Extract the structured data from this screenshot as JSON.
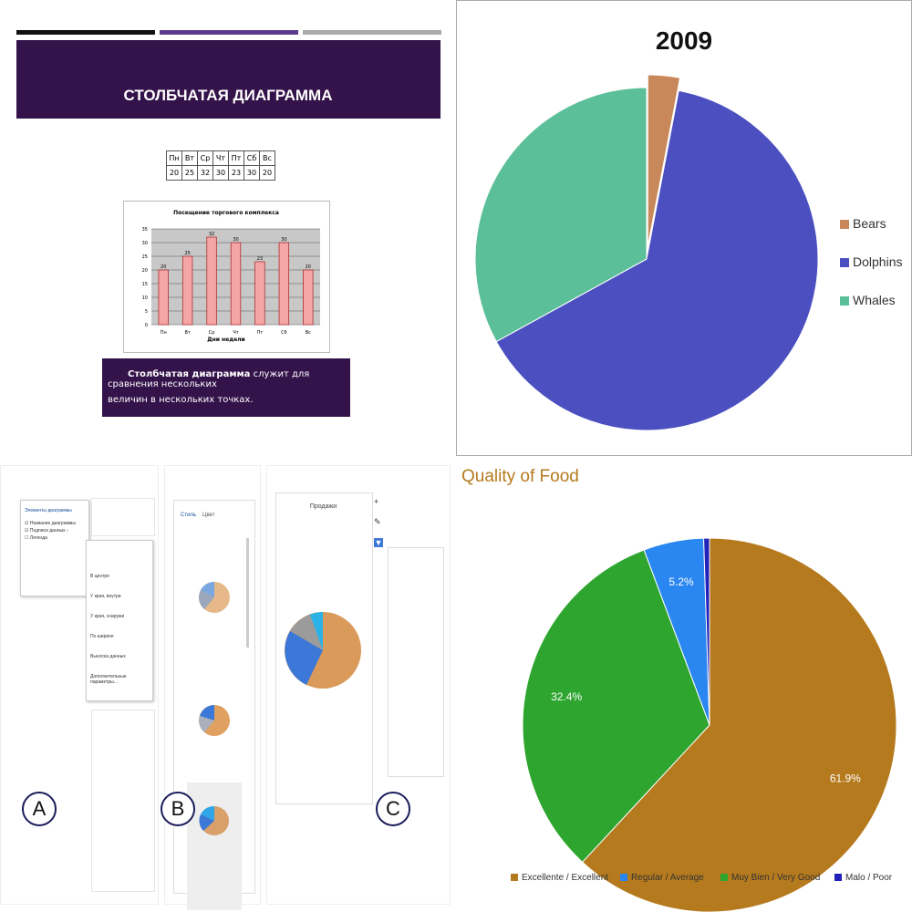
{
  "slide": {
    "title": "СТОЛБЧАТАЯ ДИАГРАММА",
    "table_days": [
      "Пн",
      "Вт",
      "Ср",
      "Чт",
      "Пт",
      "Сб",
      "Вс"
    ],
    "table_values": [
      "20",
      "25",
      "32",
      "30",
      "23",
      "30",
      "20"
    ],
    "caption_bold": "Столбчатая диаграмма",
    "caption_rest": "служит для сравнения нескольких",
    "caption_line2": "величин в нескольких точках.",
    "accent_colors": [
      "#111111",
      "#5b3a8c",
      "#aaaaaa"
    ],
    "banner_color": "#34124a"
  },
  "slide_chart": {
    "type": "bar",
    "title": "Посещение торгового комплекса",
    "xlabel": "Дни недели",
    "categories": [
      "Пн",
      "Вт",
      "Ср",
      "Чт",
      "Пт",
      "Сб",
      "Вс"
    ],
    "values": [
      20,
      25,
      32,
      30,
      23,
      30,
      20
    ],
    "ylim": [
      0,
      35
    ],
    "yticks": [
      0,
      5,
      10,
      15,
      20,
      25,
      30,
      35
    ],
    "bar_color": "#f4a6a6"
  },
  "chart_data": [
    {
      "type": "pie",
      "title": "2009",
      "labels": [
        "Bears",
        "Dolphins",
        "Whales"
      ],
      "values": [
        3,
        64,
        33
      ],
      "colors": [
        "#c8885a",
        "#4b4fc0",
        "#5bbf9a"
      ],
      "legend": "right"
    },
    {
      "type": "pie",
      "title": "Quality of Food",
      "labels": [
        "Excellente / Excellent",
        "Regular / Average",
        "Muy Bien / Very Good",
        "Malo / Poor"
      ],
      "values": [
        61.9,
        5.2,
        32.4,
        0.5
      ],
      "data_labels": [
        "61.9%",
        "5.2%",
        "32.4%",
        ""
      ],
      "colors": [
        "#b57a1e",
        "#2a86f0",
        "#2ea52e",
        "#2222bb"
      ],
      "legend": "bottom"
    }
  ],
  "screens": {
    "menu_title": "Элементы диаграммы",
    "menu_items": [
      "Название диаграммы",
      "Подписи данных",
      "Легенда"
    ],
    "submenu_items": [
      "В центре",
      "У края, внутри",
      "У края, снаружи",
      "По ширине",
      "Выноска данных",
      "Дополнительные параметры..."
    ],
    "tabs": [
      "Стиль",
      "Цвет"
    ],
    "chart_title": "Продажи",
    "labels": [
      "A",
      "B",
      "C"
    ]
  }
}
